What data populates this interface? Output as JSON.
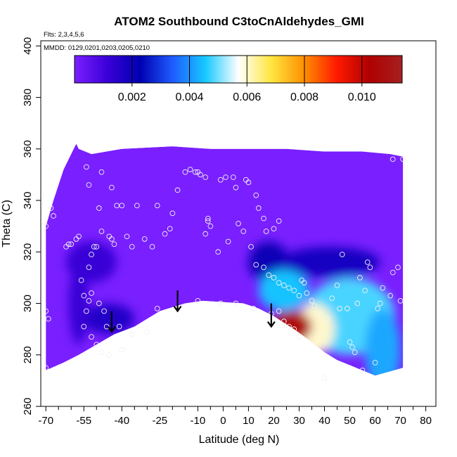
{
  "chart_data": {
    "type": "heatmap",
    "title": "ATOM2 Southbound C3toCnAldehydes_GMI",
    "subtitle_flights": "Flts: 2,3,4,5,6",
    "subtitle_dates": "MMDD: 0129,0201,0203,0205,0210",
    "xlabel": "Latitude (deg N)",
    "ylabel": "Theta (C)",
    "xlim": [
      -72,
      84
    ],
    "ylim": [
      260,
      402
    ],
    "x_ticks": [
      -70,
      -55,
      -40,
      -25,
      -10,
      0,
      10,
      20,
      30,
      40,
      50,
      60,
      70,
      80
    ],
    "x_minor_ticks": [
      -65,
      -60,
      -50,
      -45,
      -35,
      -30,
      -20,
      -15,
      -5,
      5,
      15,
      25,
      35,
      45,
      55,
      65,
      75
    ],
    "y_ticks": [
      260,
      280,
      300,
      320,
      340,
      360,
      380,
      400
    ],
    "colorbar": {
      "range": [
        0,
        0.0114
      ],
      "ticks": [
        0.002,
        0.004,
        0.006,
        0.008,
        0.01
      ],
      "tick_labels": [
        "0.002",
        "0.004",
        "0.006",
        "0.008",
        "0.010"
      ],
      "colors": [
        "#7a1fff",
        "#3a00d8",
        "#0000b0",
        "#1f5cff",
        "#17c9ff",
        "#ffffff",
        "#ffe640",
        "#ff9000",
        "#ff1a00",
        "#b00000",
        "#a52020"
      ]
    },
    "field": {
      "background_color": "#7a1fff",
      "sampled_region_top": [
        [
          -70,
          330
        ],
        [
          -67,
          340
        ],
        [
          -63,
          352
        ],
        [
          -58,
          362
        ],
        [
          -57,
          360
        ],
        [
          -52,
          358
        ],
        [
          -40,
          360
        ],
        [
          -20,
          361
        ],
        [
          -5,
          360
        ],
        [
          10,
          360
        ],
        [
          25,
          360
        ],
        [
          40,
          359
        ],
        [
          55,
          359
        ],
        [
          66,
          358
        ],
        [
          71,
          357
        ]
      ],
      "terrain_bottom": [
        [
          71,
          275
        ],
        [
          60,
          272
        ],
        [
          50,
          276
        ],
        [
          45,
          278
        ],
        [
          40,
          281
        ],
        [
          35,
          285
        ],
        [
          28,
          290
        ],
        [
          20,
          295
        ],
        [
          14,
          298
        ],
        [
          8,
          300
        ],
        [
          -8,
          301
        ],
        [
          -15,
          300
        ],
        [
          -25,
          297
        ],
        [
          -35,
          291
        ],
        [
          -43,
          288
        ],
        [
          -50,
          284
        ],
        [
          -57,
          280
        ],
        [
          -63,
          277
        ],
        [
          -70,
          274
        ]
      ],
      "blobs": [
        {
          "lat": -45,
          "theta": 294,
          "value": 0.0016,
          "rx": 10,
          "ry": 6
        },
        {
          "lat": -57,
          "theta": 300,
          "value": 0.0012,
          "rx": 4,
          "ry": 16
        },
        {
          "lat": -52,
          "theta": 316,
          "value": 0.0012,
          "rx": 10,
          "ry": 8
        },
        {
          "lat": 18,
          "theta": 316,
          "value": 0.0021,
          "rx": 8,
          "ry": 8
        },
        {
          "lat": 42,
          "theta": 316,
          "value": 0.0018,
          "rx": 20,
          "ry": 6
        },
        {
          "lat": 24,
          "theta": 305,
          "value": 0.0045,
          "rx": 10,
          "ry": 8
        },
        {
          "lat": 50,
          "theta": 295,
          "value": 0.0048,
          "rx": 18,
          "ry": 15
        },
        {
          "lat": 36,
          "theta": 290,
          "value": 0.006,
          "rx": 8,
          "ry": 10
        },
        {
          "lat": 27,
          "theta": 291,
          "value": 0.0105,
          "rx": 8,
          "ry": 6
        },
        {
          "lat": 63,
          "theta": 282,
          "value": 0.0042,
          "rx": 7,
          "ry": 16
        }
      ]
    },
    "points": [
      [
        -70,
        330
      ],
      [
        -68,
        337
      ],
      [
        -67,
        334
      ],
      [
        -70,
        297
      ],
      [
        -69,
        294
      ],
      [
        -70,
        275
      ],
      [
        -61,
        323
      ],
      [
        -62,
        322
      ],
      [
        -60,
        323
      ],
      [
        -58,
        325
      ],
      [
        -57,
        326
      ],
      [
        -54,
        353
      ],
      [
        -53,
        346
      ],
      [
        -48,
        351
      ],
      [
        -53,
        314
      ],
      [
        -52,
        319
      ],
      [
        -51,
        322
      ],
      [
        -50,
        322
      ],
      [
        -49,
        337
      ],
      [
        -48,
        328
      ],
      [
        -45,
        326
      ],
      [
        -44,
        325
      ],
      [
        -43,
        323
      ],
      [
        -42,
        338
      ],
      [
        -40,
        338
      ],
      [
        -44,
        345
      ],
      [
        -38,
        326
      ],
      [
        -36,
        322
      ],
      [
        -34,
        338
      ],
      [
        -31,
        325
      ],
      [
        -28,
        322
      ],
      [
        -26,
        338
      ],
      [
        -23,
        327
      ],
      [
        -21,
        329
      ],
      [
        -20,
        335
      ],
      [
        -18,
        344
      ],
      [
        -15,
        351
      ],
      [
        -13,
        352
      ],
      [
        -11,
        351
      ],
      [
        -10,
        351
      ],
      [
        -9,
        350
      ],
      [
        -7,
        349
      ],
      [
        -7,
        327
      ],
      [
        -6,
        333
      ],
      [
        -6,
        332
      ],
      [
        -5,
        330
      ],
      [
        -2,
        320
      ],
      [
        -1,
        348
      ],
      [
        1,
        349
      ],
      [
        2,
        324
      ],
      [
        4,
        349
      ],
      [
        5,
        345
      ],
      [
        6,
        331
      ],
      [
        8,
        328
      ],
      [
        9,
        348
      ],
      [
        10,
        347
      ],
      [
        11,
        322
      ],
      [
        13,
        342
      ],
      [
        14,
        337
      ],
      [
        16,
        333
      ],
      [
        17,
        328
      ],
      [
        20,
        329
      ],
      [
        22,
        332
      ],
      [
        -56,
        309
      ],
      [
        -55,
        303
      ],
      [
        -54,
        297
      ],
      [
        -53,
        301
      ],
      [
        -52,
        304
      ],
      [
        -49,
        300
      ],
      [
        -47,
        297
      ],
      [
        -46,
        291
      ],
      [
        -41,
        291
      ],
      [
        -36,
        288
      ],
      [
        -30,
        289
      ],
      [
        -26,
        298
      ],
      [
        -10,
        301
      ],
      [
        -1,
        300
      ],
      [
        5,
        300
      ],
      [
        12,
        298
      ],
      [
        -55,
        291
      ],
      [
        -52,
        287
      ],
      [
        -50,
        284
      ],
      [
        -48,
        281
      ],
      [
        -45,
        280
      ],
      [
        -40,
        282
      ],
      [
        13,
        315
      ],
      [
        16,
        314
      ],
      [
        18,
        311
      ],
      [
        20,
        310
      ],
      [
        22,
        308
      ],
      [
        24,
        307
      ],
      [
        26,
        306
      ],
      [
        28,
        305
      ],
      [
        30,
        303
      ],
      [
        31,
        309
      ],
      [
        32,
        308
      ],
      [
        33,
        304
      ],
      [
        35,
        301
      ],
      [
        36,
        299
      ],
      [
        38,
        296
      ],
      [
        41,
        294
      ],
      [
        43,
        302
      ],
      [
        45,
        307
      ],
      [
        46,
        298
      ],
      [
        47,
        319
      ],
      [
        49,
        298
      ],
      [
        50,
        285
      ],
      [
        51,
        283
      ],
      [
        52,
        281
      ],
      [
        53,
        300
      ],
      [
        54,
        310
      ],
      [
        56,
        305
      ],
      [
        57,
        316
      ],
      [
        58,
        314
      ],
      [
        61,
        298
      ],
      [
        62,
        300
      ],
      [
        63,
        306
      ],
      [
        66,
        303
      ],
      [
        67,
        312
      ],
      [
        69,
        314
      ],
      [
        70,
        301
      ],
      [
        71,
        356
      ],
      [
        67,
        356
      ],
      [
        22,
        297
      ],
      [
        24,
        293
      ],
      [
        26,
        291
      ],
      [
        28,
        290
      ],
      [
        30,
        287
      ],
      [
        19,
        296
      ],
      [
        40,
        271
      ],
      [
        55,
        274
      ],
      [
        60,
        277
      ]
    ],
    "arrows": [
      {
        "lat": -44,
        "theta_top": 297,
        "theta_tip": 289
      },
      {
        "lat": -18,
        "theta_top": 305,
        "theta_tip": 297
      },
      {
        "lat": 19,
        "theta_top": 300,
        "theta_tip": 291
      }
    ]
  }
}
